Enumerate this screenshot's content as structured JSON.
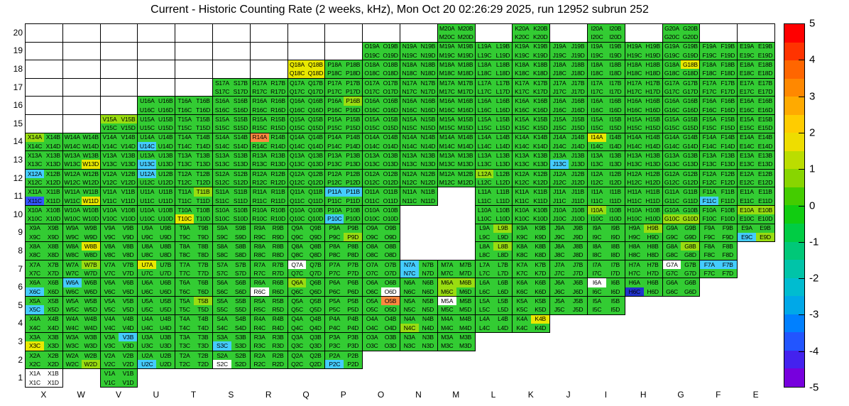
{
  "chart_data": {
    "type": "heatmap",
    "title": "Current - Historic Counting Rate (2 weeks, kHz), Mon Oct 20 02:26:29 2025, run 12952 subrun 252",
    "value_unit": "kHz",
    "columns": [
      "X",
      "W",
      "V",
      "U",
      "T",
      "S",
      "R",
      "Q",
      "P",
      "O",
      "N",
      "M",
      "L",
      "K",
      "J",
      "I",
      "H",
      "G",
      "F",
      "E"
    ],
    "rows": [
      20,
      19,
      18,
      17,
      16,
      15,
      14,
      13,
      12,
      11,
      10,
      9,
      8,
      7,
      6,
      5,
      4,
      3,
      2,
      1
    ],
    "quadrant_letters": [
      "A",
      "B",
      "C",
      "D"
    ],
    "palette": {
      "G": "#33cc33",
      "H": "#99dd11",
      "Y": "#e8e800",
      "O": "#ff8840",
      "C": "#44ccff",
      "B": "#3355ff",
      "D": "#2233cc",
      "W": "#ffffff"
    },
    "default_code": "GGGG",
    "row_spec": [
      {
        "row": 20,
        "only": [
          "M",
          "K",
          "I",
          "G"
        ],
        "empty_rest": true,
        "special": {}
      },
      {
        "row": 19,
        "from": "O",
        "to": "E",
        "empty_left": true,
        "special": {}
      },
      {
        "row": 18,
        "from": "Q",
        "to": "E",
        "empty_left": true,
        "special": {
          "Q": "YYYY",
          "G": "GYGG"
        }
      },
      {
        "row": 17,
        "from": "S",
        "to": "E",
        "empty_left": true,
        "special": {}
      },
      {
        "row": 16,
        "from": "U",
        "to": "E",
        "empty_left": true,
        "special": {
          "P": "GHGG"
        }
      },
      {
        "row": 15,
        "from": "V",
        "to": "E",
        "empty_left": true,
        "special": {
          "V": "HHGG"
        }
      },
      {
        "row": 14,
        "from": "X",
        "to": "E",
        "special": {
          "X": "HGGG",
          "U": "GGCG",
          "R": "OGGG",
          "I": "YGGG"
        }
      },
      {
        "row": 13,
        "from": "X",
        "to": "E",
        "special": {
          "W": "GGGY",
          "U": "GGCG",
          "J": "GGCG"
        }
      },
      {
        "row": 12,
        "from": "X",
        "to": "E",
        "special": {
          "X": "CGGG",
          "U": "CGGG",
          "L": "HGGG"
        }
      },
      {
        "row": 11,
        "from": "X",
        "to": "E",
        "skip": [
          "M"
        ],
        "special": {
          "X": "GGBG",
          "W": "GGGY",
          "T": "GHGG",
          "P": "CCGG",
          "F": "GGCG"
        }
      },
      {
        "row": 10,
        "from": "X",
        "to": "E",
        "skip": [
          "N",
          "M"
        ],
        "special": {
          "T": "GGYG",
          "P": "GGCG",
          "I": "HGGG",
          "G": "GGHH",
          "E": "HHGG"
        }
      },
      {
        "row": 9,
        "from": "X",
        "to": "E",
        "skip": [
          "N",
          "M"
        ],
        "special": {
          "P": "GGGH",
          "L": "GHGG",
          "H": "GHGG",
          "E": "GGCH"
        }
      },
      {
        "row": 8,
        "from": "X",
        "to": "F",
        "skip": [
          "N",
          "M"
        ],
        "special": {
          "W": "GYGG",
          "L": "GHGG",
          "G": "GHGG"
        }
      },
      {
        "row": 7,
        "from": "X",
        "to": "F",
        "special": {
          "W": "GHGG",
          "U": "YGGG",
          "Q": "WGGG",
          "N": "CGCG",
          "G": "WGGG",
          "F": "CCGG"
        }
      },
      {
        "row": 6,
        "from": "X",
        "to": "G",
        "special": {
          "X": "GGCG",
          "W": "CGGG",
          "R": "GGWG",
          "Q": "HGGG",
          "O": "GGGW",
          "M": "HHHG",
          "I": "WGGG",
          "H": "GGDG"
        }
      },
      {
        "row": 5,
        "from": "X",
        "to": "I",
        "special": {
          "X": "GGCG",
          "T": "GHGG",
          "O": "GOGG",
          "M": "WGGG"
        }
      },
      {
        "row": 4,
        "from": "X",
        "to": "K",
        "special": {
          "N": "GGHG",
          "K": "GYGG"
        }
      },
      {
        "row": 3,
        "from": "X",
        "to": "M",
        "special": {
          "X": "GGYG",
          "V": "GCGG",
          "S": "GGCG"
        }
      },
      {
        "row": 2,
        "from": "X",
        "to": "P",
        "special": {
          "W": "GGGH",
          "U": "GGCG",
          "S": "GGWG",
          "P": "GGCG"
        }
      },
      {
        "row": 1,
        "only": [
          "X",
          "V"
        ],
        "special": {
          "X": "WWWW"
        }
      }
    ],
    "colorbar": {
      "min": -5,
      "max": 5,
      "tick_labels": [
        "5",
        "4",
        "3",
        "2",
        "1",
        "0",
        "-1",
        "-2",
        "-3",
        "-4",
        "-5"
      ],
      "segments_top_to_bottom": [
        "#ff0000",
        "#ff3300",
        "#ff6600",
        "#ff8800",
        "#ffaa00",
        "#ffcc00",
        "#eedd00",
        "#bbdd00",
        "#88d500",
        "#44cc00",
        "#11cc11",
        "#00cc44",
        "#00c878",
        "#00c4a8",
        "#00bcd0",
        "#00a8e8",
        "#0080ff",
        "#2255ff",
        "#4422ee",
        "#7700dd"
      ]
    }
  }
}
